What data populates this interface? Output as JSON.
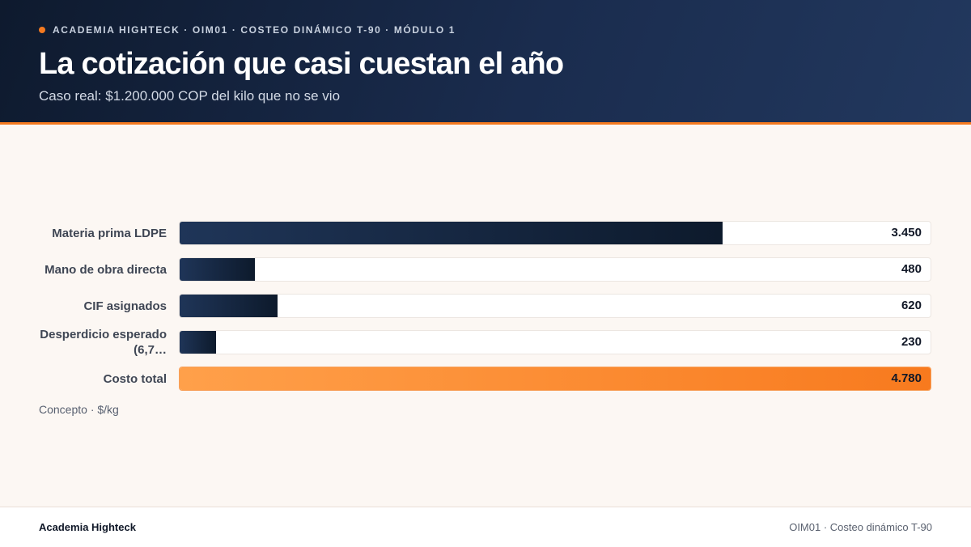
{
  "header": {
    "eyebrow": "ACADEMIA HIGHTECK · OIM01 · COSTEO DINÁMICO T-90 · MÓDULO 1",
    "title": "La cotización que casi cuestan el año",
    "subtitle": "Caso real: $1.200.000 COP del kilo que no se vio"
  },
  "chart_data": {
    "type": "bar",
    "orientation": "horizontal",
    "categories": [
      "Materia prima LDPE",
      "Mano de obra directa",
      "CIF asignados",
      "Desperdicio esperado (6,7…",
      "Costo total"
    ],
    "category_lines": [
      [
        "Materia prima LDPE"
      ],
      [
        "Mano de obra directa"
      ],
      [
        "CIF asignados"
      ],
      [
        "Desperdicio esperado",
        "(6,7…"
      ],
      [
        "Costo total"
      ]
    ],
    "values": [
      3450,
      480,
      620,
      230,
      4780
    ],
    "value_labels": [
      "3.450",
      "480",
      "620",
      "230",
      "4.780"
    ],
    "highlight_index": 4,
    "xlim": [
      0,
      4780
    ],
    "axis_note": "Concepto · $/kg",
    "colors": {
      "bar": "#0d1a2c",
      "highlight": "#f87a1e"
    }
  },
  "footer": {
    "left": "Academia Highteck",
    "right": "OIM01 · Costeo dinámico T-90"
  }
}
